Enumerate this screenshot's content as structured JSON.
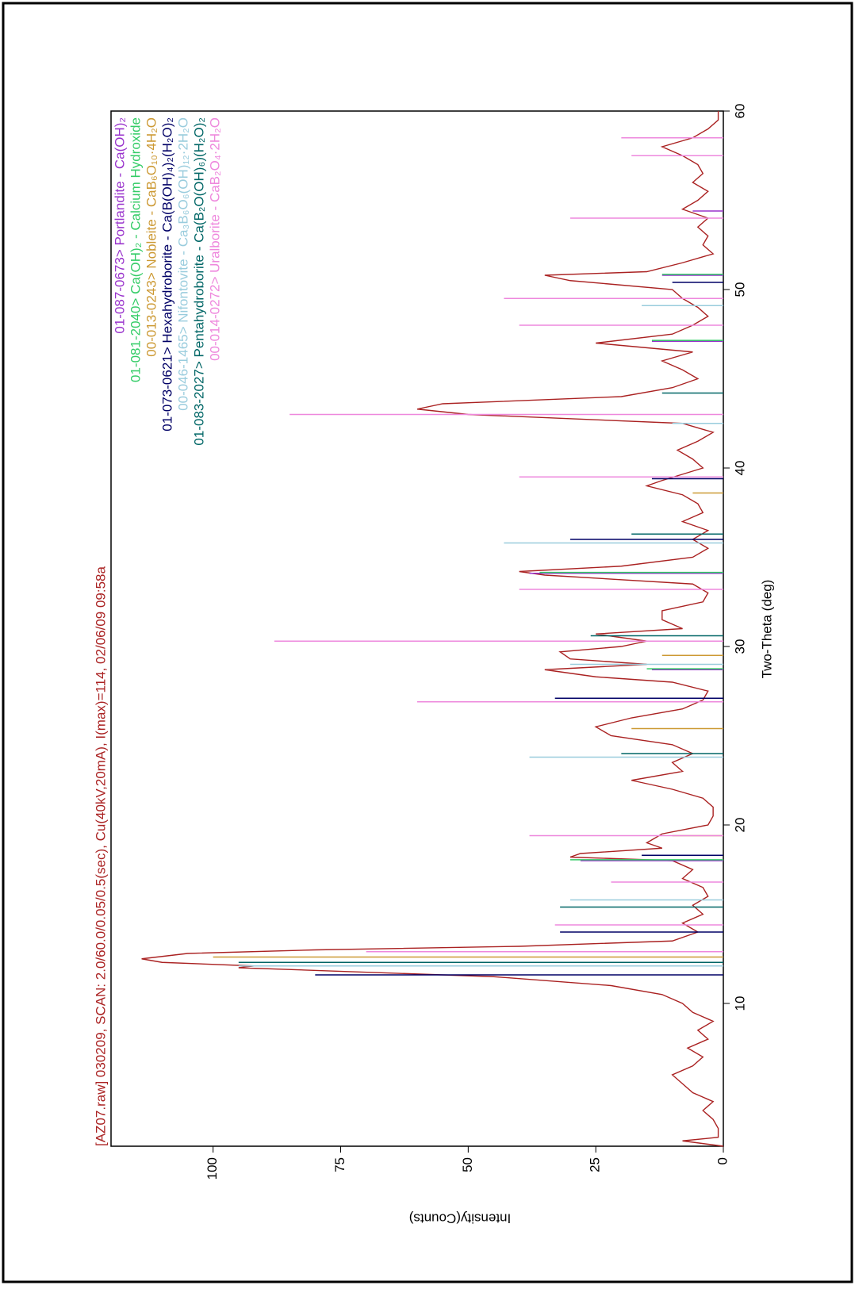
{
  "chart_data": {
    "type": "line",
    "title": "[AZ07.raw] 030209, SCAN: 2.0/60.0/0.05/0.5(sec), Cu(40kV,20mA), I(max)=114, 02/06/09 09:58a",
    "title_color": "#aa2222",
    "x_label": "Two-Theta (deg)",
    "y_label": "Intensity(Counts)",
    "xlim": [
      2,
      60
    ],
    "xticks": [
      10,
      20,
      30,
      40,
      50,
      60
    ],
    "ylim": [
      0,
      120
    ],
    "yticks": [
      0,
      25,
      50,
      75,
      100
    ],
    "legend": "upper right",
    "series": [
      {
        "name": "[AZ07.raw]",
        "style": "line",
        "color": "#aa2222",
        "x": [
          2,
          2.3,
          2.5,
          3,
          3.5,
          4,
          4.5,
          5,
          5.5,
          6,
          6.5,
          7,
          7.5,
          8,
          8.5,
          9,
          9.5,
          10,
          10.5,
          11,
          11.5,
          12,
          12.1,
          12.3,
          12.5,
          12.8,
          13,
          13.2,
          13.5,
          14,
          14.5,
          15,
          15.5,
          16,
          16.5,
          17,
          17.5,
          18,
          18.2,
          18.4,
          18.7,
          19,
          19.5,
          20,
          20.5,
          21,
          21.5,
          22,
          22.5,
          23,
          23.5,
          24,
          24.5,
          25,
          25.5,
          26,
          26.5,
          27,
          27.5,
          28,
          28.3,
          28.7,
          29,
          29.3,
          29.7,
          30,
          30.3,
          30.7,
          31,
          31.5,
          32,
          32.5,
          33,
          33.5,
          34,
          34.2,
          34.5,
          35,
          35.5,
          36,
          36.5,
          37,
          37.5,
          38,
          38.5,
          39,
          39.3,
          40,
          40.5,
          41,
          41.5,
          42,
          42.5,
          43,
          43.3,
          43.6,
          44,
          44.5,
          45,
          45.5,
          46,
          46.5,
          47,
          47.5,
          48,
          48.5,
          49,
          49.5,
          50,
          50.5,
          50.8,
          51,
          51.5,
          52,
          52.5,
          53,
          53.5,
          54,
          54.5,
          55,
          55.5,
          56,
          56.5,
          57,
          57.5,
          58,
          58.5,
          59,
          59.5,
          60
        ],
        "values": [
          0,
          8,
          1,
          1,
          2,
          4,
          2,
          6,
          8,
          10,
          6,
          4,
          7,
          3,
          5,
          2,
          6,
          8,
          12,
          22,
          45,
          95,
          92,
          110,
          114,
          105,
          80,
          40,
          10,
          5,
          8,
          4,
          6,
          3,
          4,
          8,
          6,
          10,
          30,
          28,
          12,
          15,
          12,
          3,
          2,
          2,
          4,
          10,
          18,
          8,
          10,
          6,
          10,
          22,
          25,
          18,
          8,
          4,
          3,
          10,
          25,
          35,
          15,
          30,
          32,
          20,
          15,
          25,
          8,
          12,
          12,
          4,
          3,
          6,
          35,
          40,
          20,
          6,
          3,
          6,
          3,
          8,
          4,
          5,
          8,
          15,
          12,
          4,
          6,
          9,
          5,
          2,
          8,
          50,
          60,
          55,
          20,
          10,
          5,
          8,
          12,
          6,
          25,
          10,
          6,
          3,
          5,
          8,
          10,
          30,
          35,
          15,
          8,
          2,
          4,
          3,
          5,
          3,
          8,
          5,
          3,
          6,
          4,
          5,
          8,
          12,
          6,
          3,
          1,
          1
        ]
      },
      {
        "name": "01-087-0673> Portlandite - Ca(OH)₂",
        "style": "stick",
        "color": "#9933cc",
        "x": [
          18.0,
          28.7,
          34.1,
          47.1,
          50.8,
          54.4
        ],
        "values": [
          28,
          14,
          38,
          14,
          12,
          6
        ]
      },
      {
        "name": "01-081-2040> Ca(OH)₂ - Calcium Hydroxide",
        "style": "stick",
        "color": "#33cc66",
        "x": [
          18.05,
          28.75,
          34.15,
          47.15,
          50.85
        ],
        "values": [
          30,
          15,
          36,
          14,
          12
        ]
      },
      {
        "name": "00-013-0243> Nobleite - CaB₆O₁₀·4H₂O",
        "style": "stick",
        "color": "#cc9933",
        "x": [
          12.6,
          19.4,
          25.4,
          29.5,
          38.6
        ],
        "values": [
          100,
          10,
          18,
          12,
          6
        ]
      },
      {
        "name": "01-073-0621> Hexahydroborite - Ca(B(OH)₄)₂(H₂O)₂",
        "style": "stick",
        "color": "#000066",
        "x": [
          11.6,
          14.0,
          18.3,
          27.1,
          36.0,
          39.4,
          50.4
        ],
        "values": [
          80,
          32,
          16,
          33,
          30,
          14,
          10
        ]
      },
      {
        "name": "00-046-1465> Nifontovite - Ca₃B₆O₆(OH)₁₂·2H₂O",
        "style": "stick",
        "color": "#99ccdd",
        "x": [
          12.1,
          15.8,
          23.8,
          29.0,
          35.8,
          42.5,
          49.1
        ],
        "values": [
          95,
          30,
          38,
          30,
          43,
          10,
          16
        ]
      },
      {
        "name": "01-083-2027> Pentahydroborite - Ca(B₂O(OH)₆)(H₂O)₂",
        "style": "stick",
        "color": "#006666",
        "x": [
          12.3,
          15.4,
          24.0,
          30.6,
          36.3,
          44.2
        ],
        "values": [
          95,
          32,
          20,
          26,
          18,
          12
        ]
      },
      {
        "name": "00-014-0272> Uralborite - CaB₂O₄·2H₂O",
        "style": "stick",
        "color": "#ee88dd",
        "x": [
          12.9,
          14.4,
          16.8,
          19.4,
          26.9,
          30.3,
          33.2,
          39.5,
          43.0,
          48.0,
          49.5,
          54.0,
          57.5,
          58.5
        ],
        "values": [
          70,
          33,
          22,
          38,
          60,
          88,
          40,
          40,
          85,
          40,
          43,
          30,
          18,
          20
        ]
      }
    ]
  }
}
